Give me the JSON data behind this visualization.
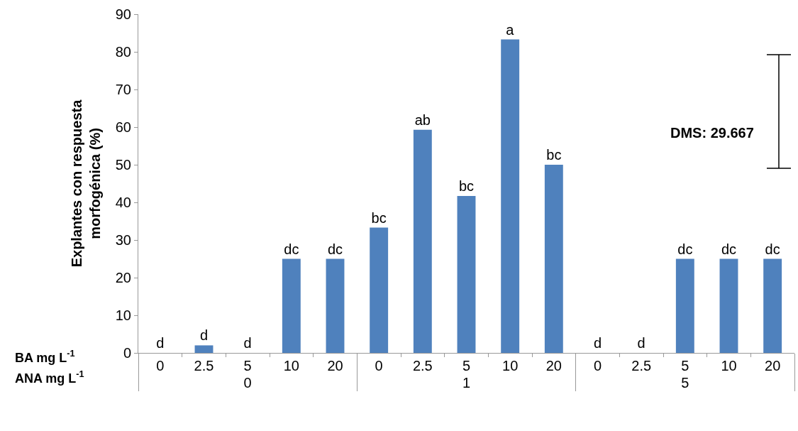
{
  "chart_data": {
    "type": "bar",
    "ylabel": "Explantes con respuesta\nmorfogénica (%)",
    "categories": [
      "0",
      "2.5",
      "5",
      "10",
      "20",
      "0",
      "2.5",
      "5",
      "10",
      "20",
      "0",
      "2.5",
      "5",
      "10",
      "20"
    ],
    "values": [
      0,
      2,
      0,
      25,
      25,
      33.3,
      59.3,
      41.7,
      83.3,
      50,
      0,
      0,
      25,
      25,
      25
    ],
    "value_labels": [
      "d",
      "d",
      "d",
      "dc",
      "dc",
      "bc",
      "ab",
      "bc",
      "a",
      "bc",
      "d",
      "d",
      "dc",
      "dc",
      "dc"
    ],
    "color": "#4f81bd",
    "ylim": [
      0,
      90
    ],
    "yticks": [
      0,
      10,
      20,
      30,
      40,
      50,
      60,
      70,
      80,
      90
    ],
    "grid": false,
    "legend": false,
    "annotations": [
      "BA mg L$^{-1}$",
      "ANA mg L$^{-1}$",
      "0",
      "1",
      "5",
      "DMS: 29.667"
    ]
  }
}
